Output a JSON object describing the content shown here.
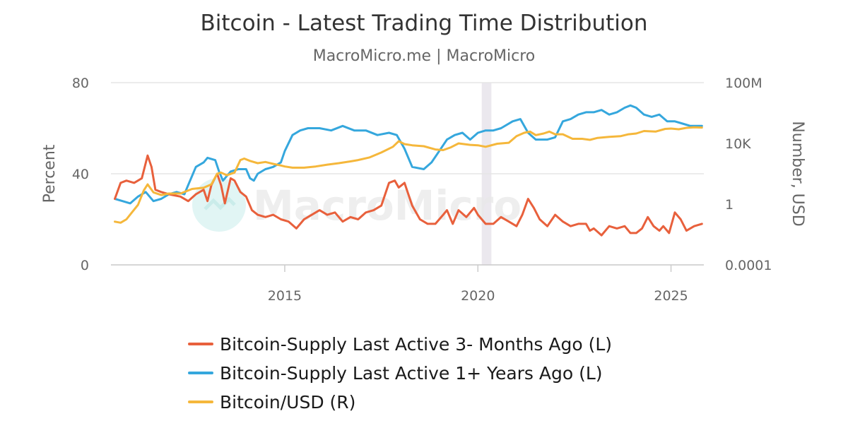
{
  "chart_data": {
    "type": "line",
    "title": "Bitcoin - Latest Trading Time Distribution",
    "subtitle": "MacroMicro.me | MacroMicro",
    "watermark": "MacroMicro",
    "x_range": [
      2010.5,
      2025.85
    ],
    "x_ticks": [
      "2015",
      "2020",
      "2025"
    ],
    "shaded_period": [
      2020.1,
      2020.35
    ],
    "left_axis": {
      "title": "Percent",
      "range": [
        0,
        80
      ],
      "ticks": [
        "0",
        "40",
        "80"
      ]
    },
    "right_axis": {
      "title": "Number, USD",
      "scale": "log",
      "range": [
        0.0001,
        100000000
      ],
      "ticks": [
        "0.0001",
        "1",
        "10K",
        "100M"
      ]
    },
    "series": [
      {
        "name": "Bitcoin-Supply Last Active 3- Months Ago (L)",
        "axis": "left",
        "color": "#e8603c",
        "x": [
          2010.6,
          2010.75,
          2010.9,
          2011.1,
          2011.3,
          2011.45,
          2011.55,
          2011.65,
          2011.8,
          2012.0,
          2012.3,
          2012.5,
          2012.7,
          2012.9,
          2013.0,
          2013.1,
          2013.25,
          2013.35,
          2013.45,
          2013.6,
          2013.7,
          2013.85,
          2014.0,
          2014.15,
          2014.3,
          2014.5,
          2014.7,
          2014.9,
          2015.1,
          2015.3,
          2015.5,
          2015.7,
          2015.9,
          2016.1,
          2016.3,
          2016.5,
          2016.7,
          2016.9,
          2017.1,
          2017.3,
          2017.5,
          2017.7,
          2017.85,
          2017.95,
          2018.1,
          2018.3,
          2018.5,
          2018.7,
          2018.9,
          2019.1,
          2019.2,
          2019.35,
          2019.5,
          2019.7,
          2019.9,
          2020.0,
          2020.2,
          2020.4,
          2020.6,
          2020.8,
          2021.0,
          2021.15,
          2021.3,
          2021.45,
          2021.6,
          2021.8,
          2022.0,
          2022.2,
          2022.4,
          2022.6,
          2022.8,
          2022.9,
          2023.0,
          2023.2,
          2023.4,
          2023.6,
          2023.8,
          2023.95,
          2024.1,
          2024.25,
          2024.4,
          2024.55,
          2024.7,
          2024.8,
          2024.95,
          2025.1,
          2025.25,
          2025.4,
          2025.6,
          2025.8
        ],
        "values": [
          29,
          36,
          37,
          36,
          38,
          48,
          43,
          33,
          32,
          31,
          30,
          28,
          31,
          33,
          28,
          35,
          40,
          35,
          27,
          38,
          37,
          32,
          30,
          24,
          22,
          21,
          22,
          20,
          19,
          16,
          20,
          22,
          24,
          22,
          23,
          19,
          21,
          20,
          23,
          24,
          26,
          36,
          37,
          34,
          36,
          26,
          20,
          18,
          18,
          22,
          24,
          18,
          24,
          21,
          25,
          22,
          18,
          18,
          21,
          19,
          17,
          22,
          29,
          25,
          20,
          17,
          22,
          19,
          17,
          18,
          18,
          15,
          16,
          13,
          17,
          16,
          17,
          14,
          14,
          16,
          21,
          17,
          15,
          17,
          14,
          23,
          20,
          15,
          17,
          18
        ]
      },
      {
        "name": "Bitcoin-Supply Last Active 1+ Years Ago (L)",
        "axis": "left",
        "color": "#35a7dd",
        "x": [
          2010.6,
          2010.8,
          2011.0,
          2011.2,
          2011.4,
          2011.6,
          2011.8,
          2012.0,
          2012.2,
          2012.4,
          2012.5,
          2012.7,
          2012.9,
          2013.0,
          2013.2,
          2013.3,
          2013.4,
          2013.6,
          2013.8,
          2014.0,
          2014.1,
          2014.2,
          2014.3,
          2014.5,
          2014.7,
          2014.9,
          2015.0,
          2015.2,
          2015.4,
          2015.6,
          2015.9,
          2016.2,
          2016.5,
          2016.8,
          2017.1,
          2017.4,
          2017.7,
          2017.9,
          2018.1,
          2018.3,
          2018.6,
          2018.8,
          2019.0,
          2019.2,
          2019.4,
          2019.6,
          2019.8,
          2020.0,
          2020.2,
          2020.4,
          2020.6,
          2020.9,
          2021.1,
          2021.3,
          2021.5,
          2021.8,
          2022.0,
          2022.2,
          2022.4,
          2022.6,
          2022.8,
          2023.0,
          2023.2,
          2023.4,
          2023.6,
          2023.8,
          2023.95,
          2024.1,
          2024.3,
          2024.5,
          2024.7,
          2024.9,
          2025.1,
          2025.3,
          2025.5,
          2025.8
        ],
        "values": [
          29,
          28,
          27,
          30,
          32,
          28,
          29,
          31,
          32,
          31,
          35,
          43,
          45,
          47,
          46,
          41,
          37,
          41,
          42,
          42,
          38,
          37,
          40,
          42,
          43,
          45,
          50,
          57,
          59,
          60,
          60,
          59,
          61,
          59,
          59,
          57,
          58,
          57,
          51,
          43,
          42,
          45,
          50,
          55,
          57,
          58,
          55,
          58,
          59,
          59,
          60,
          63,
          64,
          58,
          55,
          55,
          56,
          63,
          64,
          66,
          67,
          67,
          68,
          66,
          67,
          69,
          70,
          69,
          66,
          65,
          66,
          63,
          63,
          62,
          61,
          61
        ]
      },
      {
        "name": "Bitcoin/USD (R)",
        "axis": "right",
        "color": "#f5b73b",
        "x": [
          2010.6,
          2010.75,
          2010.9,
          2011.05,
          2011.2,
          2011.35,
          2011.45,
          2011.6,
          2011.8,
          2012.0,
          2012.3,
          2012.6,
          2012.9,
          2013.1,
          2013.25,
          2013.35,
          2013.5,
          2013.7,
          2013.85,
          2013.95,
          2014.1,
          2014.3,
          2014.5,
          2014.7,
          2014.9,
          2015.0,
          2015.2,
          2015.5,
          2015.8,
          2016.1,
          2016.4,
          2016.7,
          2016.9,
          2017.2,
          2017.5,
          2017.8,
          2017.95,
          2018.1,
          2018.3,
          2018.6,
          2018.9,
          2019.1,
          2019.3,
          2019.5,
          2019.8,
          2020.0,
          2020.2,
          2020.5,
          2020.8,
          2021.0,
          2021.2,
          2021.35,
          2021.5,
          2021.7,
          2021.85,
          2022.0,
          2022.2,
          2022.45,
          2022.7,
          2022.9,
          2023.1,
          2023.4,
          2023.7,
          2023.9,
          2024.1,
          2024.3,
          2024.6,
          2024.85,
          2025.0,
          2025.2,
          2025.4,
          2025.6,
          2025.8
        ],
        "values": [
          0.07,
          0.06,
          0.1,
          0.3,
          0.9,
          8,
          20,
          6,
          4,
          5,
          5,
          10,
          12,
          20,
          100,
          120,
          80,
          120,
          800,
          1000,
          700,
          500,
          600,
          450,
          350,
          300,
          250,
          250,
          300,
          400,
          500,
          650,
          800,
          1200,
          2500,
          6000,
          14000,
          9000,
          7500,
          6500,
          4000,
          3600,
          5500,
          10000,
          8000,
          7500,
          6000,
          9500,
          11000,
          30000,
          50000,
          60000,
          35000,
          45000,
          60000,
          40000,
          40000,
          20000,
          20000,
          17000,
          23000,
          27000,
          30000,
          40000,
          45000,
          65000,
          60000,
          90000,
          95000,
          85000,
          105000,
          115000,
          110000
        ]
      }
    ],
    "legend": {
      "placement": "bottom",
      "items": [
        "Bitcoin-Supply Last Active 3- Months Ago (L)",
        "Bitcoin-Supply Last Active 1+ Years Ago (L)",
        "Bitcoin/USD (R)"
      ]
    },
    "grid": true
  }
}
